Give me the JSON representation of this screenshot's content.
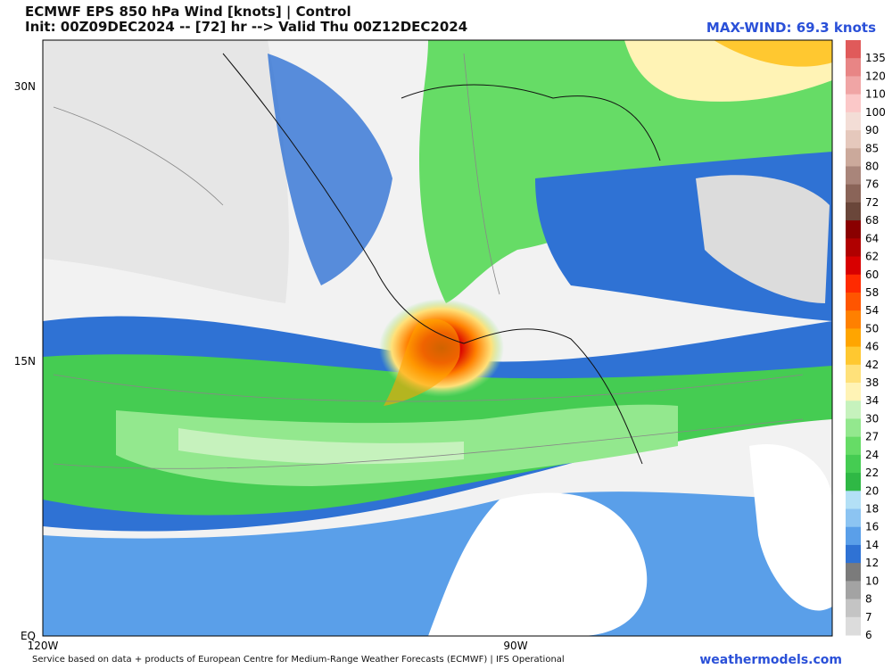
{
  "header": {
    "title": "ECMWF EPS 850 hPa Wind [knots] | Control",
    "subtitle": "Init: 00Z09DEC2024 -- [72] hr --> Valid Thu 00Z12DEC2024",
    "max_wind": "MAX-WIND: 69.3 knots"
  },
  "axes": {
    "lat_labels": [
      "30N",
      "15N",
      "EQ"
    ],
    "lon_labels": [
      "120W",
      "90W"
    ]
  },
  "colorbar": {
    "levels": [
      "135",
      "120",
      "110",
      "100",
      "90",
      "85",
      "80",
      "76",
      "72",
      "68",
      "64",
      "62",
      "60",
      "58",
      "54",
      "50",
      "46",
      "42",
      "38",
      "34",
      "30",
      "27",
      "24",
      "22",
      "20",
      "18",
      "16",
      "14",
      "12",
      "10",
      "8",
      "7",
      "6"
    ],
    "colors": [
      "#e05a5a",
      "#e88585",
      "#f0a5a5",
      "#fbc8c8",
      "#f3ddd6",
      "#e5c8bc",
      "#cba99b",
      "#a9857a",
      "#8a6458",
      "#6a463a",
      "#8a0000",
      "#b00000",
      "#d80000",
      "#ff2a00",
      "#ff5500",
      "#ff8000",
      "#ffa500",
      "#ffc830",
      "#ffe17a",
      "#fff3b5",
      "#c6f2bd",
      "#93e88e",
      "#66dc66",
      "#45cc52",
      "#2fb845",
      "#b3e0f6",
      "#8cc4f2",
      "#5a9fe9",
      "#2f72d4",
      "#7b7b7b",
      "#a3a3a3",
      "#c4c4c4",
      "#dcdcdc"
    ]
  },
  "footer": {
    "credit": "Service based on data + products of European Centre for Medium-Range Weather Forecasts (ECMWF) | IFS Operational",
    "brand": "weathermodels.com"
  }
}
